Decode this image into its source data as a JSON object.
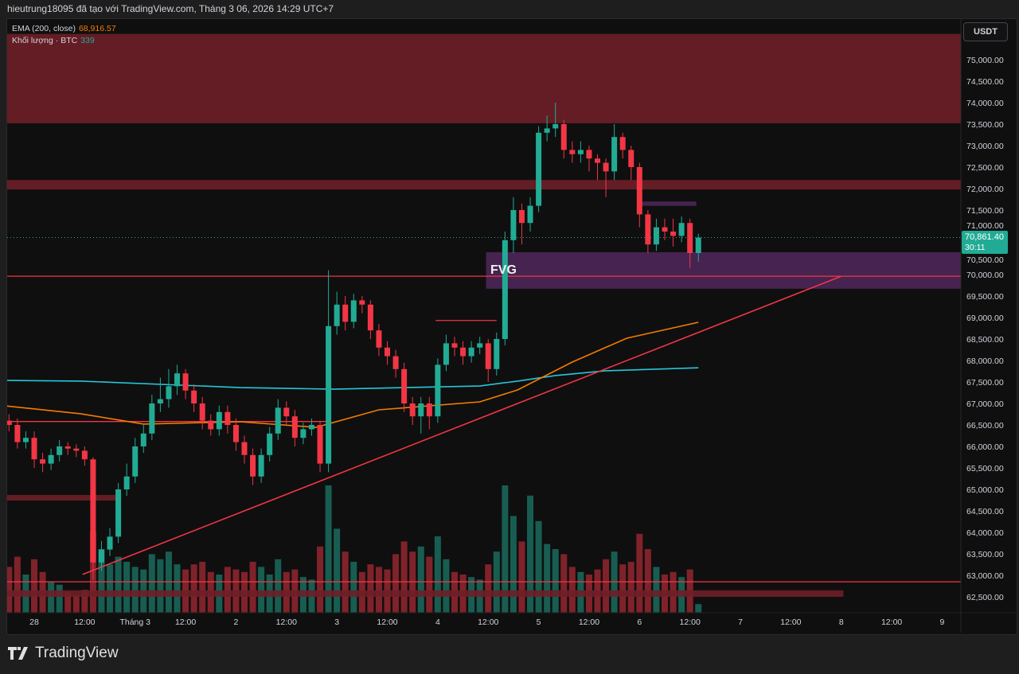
{
  "header": {
    "attribution": "hieutrung18095 đã tạo với TradingView.com, Tháng 3 06, 2026 14:29 UTC+7"
  },
  "legend": {
    "ema_label": "EMA (200, close)",
    "ema_value": "68,916.57",
    "volume_label": "Khối lượng · BTC",
    "volume_value": "339"
  },
  "currency_button": "USDT",
  "price_tag": {
    "price": "70,861.40",
    "countdown": "30:11"
  },
  "brand": "TradingView",
  "colors": {
    "up": "#22ab94",
    "down": "#f23645",
    "ema200": "#f57c00",
    "ema_cyan": "#26c6da",
    "zone_red": "#6e1f28",
    "fvg": "#4c2658",
    "line_red": "#f23645",
    "background": "#0f0f0f"
  },
  "chart_data": {
    "type": "candlestick",
    "symbol_quote": "USDT",
    "price_axis": {
      "min": 62500,
      "max": 75000,
      "step": 500,
      "ticks": [
        "62,500.00",
        "63,000.00",
        "63,500.00",
        "64,000.00",
        "64,500.00",
        "65,000.00",
        "65,500.00",
        "66,000.00",
        "66,500.00",
        "67,000.00",
        "67,500.00",
        "68,000.00",
        "68,500.00",
        "69,000.00",
        "69,500.00",
        "70,000.00",
        "70,500.00",
        "71,000.00",
        "71,500.00",
        "72,000.00",
        "72,500.00",
        "73,000.00",
        "73,500.00",
        "74,000.00",
        "74,500.00",
        "75,000.00"
      ]
    },
    "time_axis": [
      {
        "label": "28",
        "t": "2026-02-28T00:00"
      },
      {
        "label": "12:00",
        "t": "2026-02-28T12:00"
      },
      {
        "label": "Tháng 3",
        "t": "2026-03-01T00:00"
      },
      {
        "label": "12:00",
        "t": "2026-03-01T12:00"
      },
      {
        "label": "2",
        "t": "2026-03-02T00:00"
      },
      {
        "label": "12:00",
        "t": "2026-03-02T12:00"
      },
      {
        "label": "3",
        "t": "2026-03-03T00:00"
      },
      {
        "label": "12:00",
        "t": "2026-03-03T12:00"
      },
      {
        "label": "4",
        "t": "2026-03-04T00:00"
      },
      {
        "label": "12:00",
        "t": "2026-03-04T12:00"
      },
      {
        "label": "5",
        "t": "2026-03-05T00:00"
      },
      {
        "label": "12:00",
        "t": "2026-03-05T12:00"
      },
      {
        "label": "6",
        "t": "2026-03-06T00:00"
      },
      {
        "label": "12:00",
        "t": "2026-03-06T12:00"
      },
      {
        "label": "7",
        "t": "2026-03-07T00:00"
      },
      {
        "label": "12:00",
        "t": "2026-03-07T12:00"
      },
      {
        "label": "8",
        "t": "2026-03-08T00:00"
      },
      {
        "label": "12:00",
        "t": "2026-03-08T12:00"
      },
      {
        "label": "9",
        "t": "2026-03-09T00:00"
      }
    ],
    "candle_fields": [
      "time",
      "open",
      "high",
      "low",
      "close",
      "volume"
    ],
    "candles": [
      [
        "2026-02-27T18:00",
        66600,
        66750,
        66350,
        66500,
        1800
      ],
      [
        "2026-02-27T20:00",
        66500,
        66650,
        65950,
        66100,
        2200
      ],
      [
        "2026-02-27T22:00",
        66100,
        66350,
        65950,
        66200,
        1500
      ],
      [
        "2026-02-28T00:00",
        66200,
        66350,
        65500,
        65700,
        2100
      ],
      [
        "2026-02-28T02:00",
        65700,
        65850,
        65400,
        65600,
        1600
      ],
      [
        "2026-02-28T04:00",
        65600,
        65950,
        65450,
        65800,
        1200
      ],
      [
        "2026-02-28T06:00",
        65800,
        66150,
        65650,
        66000,
        1100
      ],
      [
        "2026-02-28T08:00",
        66000,
        66100,
        65800,
        65950,
        800
      ],
      [
        "2026-02-28T10:00",
        65950,
        66050,
        65750,
        65900,
        700
      ],
      [
        "2026-02-28T12:00",
        65900,
        66000,
        65550,
        65700,
        900
      ],
      [
        "2026-02-28T14:00",
        65700,
        65750,
        62900,
        63300,
        3200
      ],
      [
        "2026-02-28T16:00",
        63300,
        63800,
        63100,
        63600,
        2500
      ],
      [
        "2026-02-28T18:00",
        63600,
        64100,
        63450,
        63900,
        1900
      ],
      [
        "2026-02-28T20:00",
        63900,
        65150,
        63750,
        65000,
        2200
      ],
      [
        "2026-02-28T22:00",
        65000,
        65600,
        64850,
        65300,
        2000
      ],
      [
        "2026-03-01T00:00",
        65300,
        66200,
        65150,
        66000,
        1800
      ],
      [
        "2026-03-01T02:00",
        66000,
        66500,
        65850,
        66300,
        1700
      ],
      [
        "2026-03-01T04:00",
        66300,
        67200,
        66150,
        67000,
        2300
      ],
      [
        "2026-03-01T06:00",
        67000,
        67600,
        66800,
        67100,
        2100
      ],
      [
        "2026-03-01T08:00",
        67100,
        67800,
        66900,
        67400,
        2400
      ],
      [
        "2026-03-01T10:00",
        67400,
        67900,
        67200,
        67700,
        1900
      ],
      [
        "2026-03-01T12:00",
        67700,
        67800,
        67100,
        67300,
        1700
      ],
      [
        "2026-03-01T14:00",
        67300,
        67450,
        66800,
        67000,
        1900
      ],
      [
        "2026-03-01T16:00",
        67000,
        67150,
        66400,
        66600,
        2000
      ],
      [
        "2026-03-01T18:00",
        66600,
        66750,
        66250,
        66400,
        1600
      ],
      [
        "2026-03-01T20:00",
        66400,
        66950,
        66250,
        66800,
        1500
      ],
      [
        "2026-03-01T22:00",
        66800,
        66950,
        66300,
        66500,
        1800
      ],
      [
        "2026-03-02T00:00",
        66500,
        66650,
        65900,
        66100,
        1700
      ],
      [
        "2026-03-02T02:00",
        66100,
        66250,
        65600,
        65800,
        1600
      ],
      [
        "2026-03-02T04:00",
        65800,
        65950,
        65100,
        65300,
        2000
      ],
      [
        "2026-03-02T06:00",
        65300,
        65950,
        65150,
        65800,
        1800
      ],
      [
        "2026-03-02T08:00",
        65800,
        66450,
        65650,
        66300,
        1500
      ],
      [
        "2026-03-02T10:00",
        66300,
        67100,
        66150,
        66900,
        2100
      ],
      [
        "2026-03-02T12:00",
        66900,
        67050,
        66500,
        66700,
        1600
      ],
      [
        "2026-03-02T14:00",
        66700,
        66850,
        66000,
        66200,
        1700
      ],
      [
        "2026-03-02T16:00",
        66200,
        66550,
        66050,
        66400,
        1400
      ],
      [
        "2026-03-02T18:00",
        66400,
        66650,
        66250,
        66500,
        1300
      ],
      [
        "2026-03-02T20:00",
        66500,
        66600,
        65400,
        65600,
        2600
      ],
      [
        "2026-03-02T22:00",
        65600,
        70100,
        65400,
        68800,
        5000
      ],
      [
        "2026-03-03T00:00",
        68800,
        69600,
        68600,
        69300,
        3300
      ],
      [
        "2026-03-03T02:00",
        69300,
        69500,
        68700,
        68900,
        2400
      ],
      [
        "2026-03-03T04:00",
        68900,
        69550,
        68750,
        69400,
        2000
      ],
      [
        "2026-03-03T06:00",
        69400,
        69500,
        69100,
        69300,
        1600
      ],
      [
        "2026-03-03T08:00",
        69300,
        69400,
        68500,
        68700,
        1900
      ],
      [
        "2026-03-03T10:00",
        68700,
        68850,
        68100,
        68300,
        1800
      ],
      [
        "2026-03-03T12:00",
        68300,
        68450,
        67900,
        68100,
        1700
      ],
      [
        "2026-03-03T14:00",
        68100,
        68250,
        67600,
        67800,
        2300
      ],
      [
        "2026-03-03T16:00",
        67800,
        67950,
        66800,
        67000,
        2800
      ],
      [
        "2026-03-03T18:00",
        67000,
        67150,
        66500,
        66700,
        2400
      ],
      [
        "2026-03-03T20:00",
        66700,
        67150,
        66300,
        67000,
        2600
      ],
      [
        "2026-03-03T22:00",
        67000,
        67150,
        66400,
        66700,
        2200
      ],
      [
        "2026-03-04T00:00",
        66700,
        68050,
        66550,
        67900,
        3000
      ],
      [
        "2026-03-04T02:00",
        67900,
        68600,
        67750,
        68400,
        2100
      ],
      [
        "2026-03-04T04:00",
        68400,
        68550,
        68100,
        68300,
        1600
      ],
      [
        "2026-03-04T06:00",
        68300,
        68450,
        67900,
        68100,
        1500
      ],
      [
        "2026-03-04T08:00",
        68100,
        68450,
        67950,
        68300,
        1400
      ],
      [
        "2026-03-04T10:00",
        68300,
        68550,
        68150,
        68400,
        1300
      ],
      [
        "2026-03-04T12:00",
        68400,
        68500,
        67500,
        67800,
        1900
      ],
      [
        "2026-03-04T14:00",
        67800,
        68650,
        67650,
        68500,
        2400
      ],
      [
        "2026-03-04T16:00",
        68500,
        71000,
        68350,
        70800,
        5000
      ],
      [
        "2026-03-04T18:00",
        70800,
        71800,
        70500,
        71500,
        3800
      ],
      [
        "2026-03-04T20:00",
        71500,
        71650,
        70700,
        71200,
        2800
      ],
      [
        "2026-03-04T22:00",
        71200,
        71800,
        71000,
        71600,
        4600
      ],
      [
        "2026-03-05T00:00",
        71600,
        73450,
        71450,
        73300,
        3600
      ],
      [
        "2026-03-05T02:00",
        73300,
        73700,
        73100,
        73400,
        2700
      ],
      [
        "2026-03-05T04:00",
        73400,
        74000,
        73200,
        73500,
        2500
      ],
      [
        "2026-03-05T06:00",
        73500,
        73600,
        72700,
        72900,
        2300
      ],
      [
        "2026-03-05T08:00",
        72900,
        73100,
        72600,
        72800,
        1800
      ],
      [
        "2026-03-05T10:00",
        72800,
        73100,
        72600,
        72900,
        1600
      ],
      [
        "2026-03-05T12:00",
        72900,
        73000,
        72400,
        72700,
        1500
      ],
      [
        "2026-03-05T14:00",
        72700,
        72800,
        72200,
        72600,
        1700
      ],
      [
        "2026-03-05T16:00",
        72600,
        72700,
        71800,
        72400,
        2100
      ],
      [
        "2026-03-05T18:00",
        72400,
        73500,
        72200,
        73200,
        2400
      ],
      [
        "2026-03-05T20:00",
        73200,
        73300,
        72700,
        72900,
        1900
      ],
      [
        "2026-03-05T22:00",
        72900,
        73000,
        72200,
        72500,
        2000
      ],
      [
        "2026-03-06T00:00",
        72500,
        72600,
        71100,
        71400,
        3100
      ],
      [
        "2026-03-06T02:00",
        71400,
        71500,
        70500,
        70700,
        2500
      ],
      [
        "2026-03-06T04:00",
        70700,
        71300,
        70550,
        71100,
        1800
      ],
      [
        "2026-03-06T06:00",
        71100,
        71300,
        70800,
        71000,
        1500
      ],
      [
        "2026-03-06T08:00",
        71000,
        71300,
        70650,
        70900,
        1600
      ],
      [
        "2026-03-06T10:00",
        70900,
        71350,
        70750,
        71200,
        1400
      ],
      [
        "2026-03-06T12:00",
        71200,
        71300,
        70150,
        70500,
        1700
      ],
      [
        "2026-03-06T14:00",
        70500,
        70950,
        70300,
        70861.4,
        339
      ]
    ],
    "ema200": [
      [
        "2026-02-27T17:00",
        66944
      ],
      [
        "2026-02-28T11:00",
        66760
      ],
      [
        "2026-03-01T02:00",
        66520
      ],
      [
        "2026-03-02T01:00",
        66574
      ],
      [
        "2026-03-02T19:00",
        66444
      ],
      [
        "2026-03-03T10:00",
        66852
      ],
      [
        "2026-03-04T10:00",
        67037
      ],
      [
        "2026-03-04T19:00",
        67315
      ],
      [
        "2026-03-05T08:00",
        67963
      ],
      [
        "2026-03-05T21:00",
        68519
      ],
      [
        "2026-03-06T14:00",
        68889
      ]
    ],
    "ema_cyan": [
      [
        "2026-02-27T17:00",
        67537
      ],
      [
        "2026-02-28T11:00",
        67520
      ],
      [
        "2026-03-02T01:00",
        67370
      ],
      [
        "2026-03-02T23:00",
        67333
      ],
      [
        "2026-03-04T10:00",
        67407
      ],
      [
        "2026-03-04T19:00",
        67520
      ],
      [
        "2026-03-05T04:00",
        67650
      ],
      [
        "2026-03-05T16:00",
        67760
      ],
      [
        "2026-03-06T14:00",
        67830
      ]
    ],
    "drawings": {
      "zones": [
        {
          "name": "resistance-zone-top",
          "low": 73520,
          "high": 75600,
          "start": null,
          "end": null,
          "color": "#6e1f28"
        },
        {
          "name": "resistance-band-72000",
          "low": 71980,
          "high": 72200,
          "start": null,
          "end": null,
          "color": "#6e1f28"
        },
        {
          "name": "fvg-zone",
          "label": "FVG",
          "low": 69670,
          "high": 70520,
          "start": "2026-03-04T11:30",
          "end": null,
          "color": "#4c2658"
        },
        {
          "name": "purple-zone-small",
          "low": 71600,
          "high": 71700,
          "start": "2026-03-05T23:30",
          "end": "2026-03-06T13:30",
          "color": "#4c2658"
        },
        {
          "name": "support-band-bottom",
          "low": 62500,
          "high": 62650,
          "start": null,
          "end": "2026-03-08T00:30",
          "color": "#6e1f28"
        },
        {
          "name": "support-band-left",
          "low": 64740,
          "high": 64870,
          "start": null,
          "end": "2026-02-28T19:30",
          "color": "#6e1f28"
        }
      ],
      "hlines": [
        {
          "name": "hline-69960",
          "price": 69960,
          "start": null,
          "end": null
        },
        {
          "name": "hline-62850",
          "price": 62850,
          "start": null,
          "end": null
        },
        {
          "name": "hline-68930",
          "price": 68930,
          "start": "2026-03-03T23:30",
          "end": "2026-03-04T14:00"
        },
        {
          "name": "hline-66580",
          "price": 66580,
          "start": null,
          "end": "2026-03-02T21:30"
        }
      ],
      "trendline": {
        "start": [
          "2026-02-28T11:30",
          63020
        ],
        "end": [
          "2026-03-08T00:00",
          69960
        ]
      },
      "current_price": 70861.4
    }
  }
}
